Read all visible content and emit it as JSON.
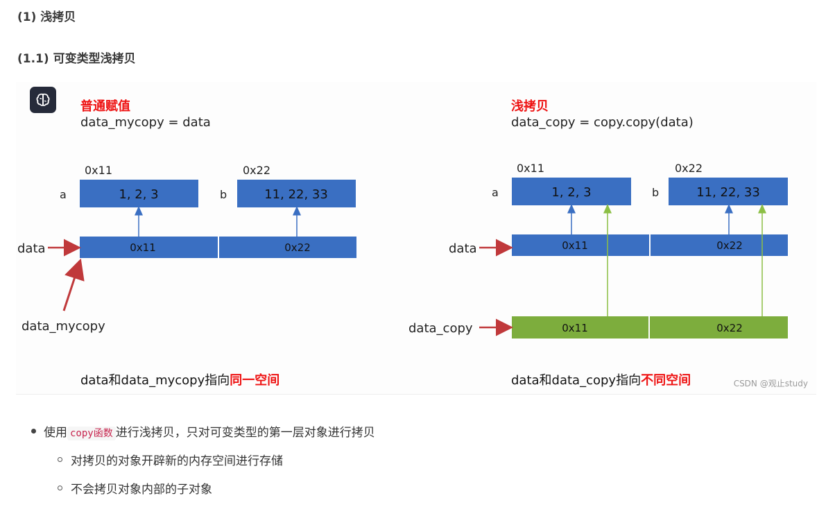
{
  "headings": {
    "h1": "(1) 浅拷贝",
    "h2": "(1.1) 可变类型浅拷贝"
  },
  "diagram": {
    "left": {
      "title": "普通赋值",
      "code": "data_mycopy = data",
      "addr_a": "0x11",
      "addr_b": "0x22",
      "label_a": "a",
      "label_b": "b",
      "box_a": "1, 2, 3",
      "box_b": "11, 22, 33",
      "list_label": "data",
      "cell1": "0x11",
      "cell2": "0x22",
      "alias_label": "data_mycopy",
      "caption_prefix": "data和data_mycopy指向",
      "caption_emph": "同一空间"
    },
    "right": {
      "title": "浅拷贝",
      "code": "data_copy = copy.copy(data)",
      "addr_a": "0x11",
      "addr_b": "0x22",
      "label_a": "a",
      "label_b": "b",
      "box_a": "1, 2, 3",
      "box_b": "11, 22, 33",
      "list_label": "data",
      "cell1": "0x11",
      "cell2": "0x22",
      "copy_label": "data_copy",
      "copy_cell1": "0x11",
      "copy_cell2": "0x22",
      "caption_prefix": "data和data_copy指向",
      "caption_emph": "不同空间"
    },
    "watermark": "CSDN @观止study",
    "icon": "brain-icon",
    "colors": {
      "blue": "#3a6fc2",
      "green": "#7dad3d",
      "red": "#ee1111",
      "arrow_red": "#c0393b"
    }
  },
  "bullets": {
    "item1_code": "copy函数",
    "item1_prefix": "使用",
    "item1_rest": "进行浅拷贝，只对可变类型的第一层对象进行拷贝",
    "sub1": "对拷贝的对象开辟新的内存空间进行存储",
    "sub2": "不会拷贝对象内部的子对象"
  }
}
